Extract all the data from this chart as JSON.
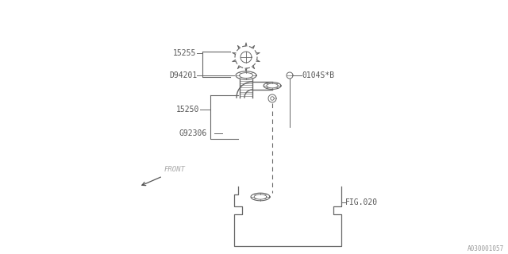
{
  "bg_color": "#ffffff",
  "line_color": "#666666",
  "text_color": "#555555",
  "watermark": "A030001057",
  "label_15255": "15255",
  "label_D94201": "D94201",
  "label_15250": "15250",
  "label_G92306": "G92306",
  "label_0104SB": "0104S*B",
  "label_FIG020": "FIG.020",
  "label_FRONT": "FRONT"
}
